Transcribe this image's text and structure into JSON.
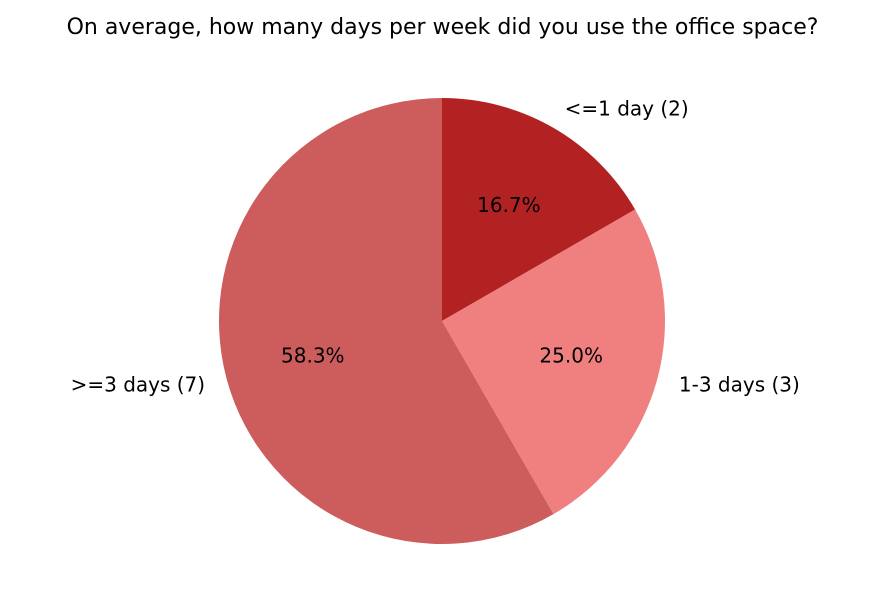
{
  "figure": {
    "background": "#ffffff",
    "text_color": "#000000"
  },
  "chart_data": {
    "type": "pie",
    "title": "On average, how many days per week did you use the office space?",
    "slices": [
      {
        "label": "<=1 day (2)",
        "value": 2,
        "pct": 16.7,
        "pct_label": "16.7%",
        "color": "#b22222"
      },
      {
        "label": "1-3 days (3)",
        "value": 3,
        "pct": 25.0,
        "pct_label": "25.0%",
        "color": "#f08080"
      },
      {
        "label": ">=3 days (7)",
        "value": 7,
        "pct": 58.3,
        "pct_label": "58.3%",
        "color": "#cd5c5c"
      }
    ],
    "start_angle": "top",
    "direction": "clockwise",
    "label_distance": 1.1,
    "pct_distance": 0.6,
    "legend": "none",
    "grid": "off"
  }
}
